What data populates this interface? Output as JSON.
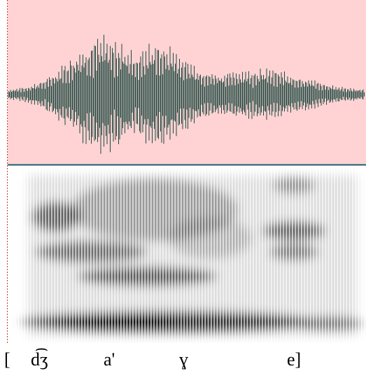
{
  "transcription": [
    "[",
    "d͡ʒ",
    "a'",
    "ɣ",
    "e]"
  ]
}
